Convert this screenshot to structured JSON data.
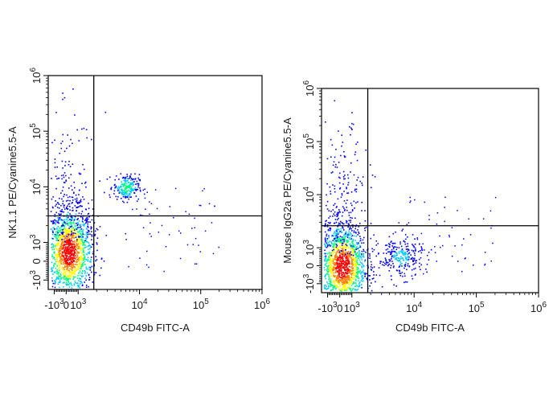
{
  "chart_data": [
    {
      "type": "scatter",
      "plot_style": "pseudocolor density dot plot",
      "title": "",
      "xlabel": "CD49b FITC-A",
      "ylabel": "NK1.1 PE/Cyanine5.5-A",
      "xscale": "biexponential",
      "yscale": "biexponential",
      "xlim": [
        -1500,
        1000000
      ],
      "ylim": [
        -1500,
        1000000
      ],
      "x_ticks": [
        {
          "value": -1000,
          "base": "-10",
          "exp": "3"
        },
        {
          "value": 0,
          "base": "0",
          "exp": ""
        },
        {
          "value": 1000,
          "base": "10",
          "exp": "3"
        },
        {
          "value": 10000,
          "base": "10",
          "exp": "4"
        },
        {
          "value": 100000,
          "base": "10",
          "exp": "5"
        },
        {
          "value": 1000000,
          "base": "10",
          "exp": "6"
        }
      ],
      "y_ticks": [
        {
          "value": -1000,
          "base": "-10",
          "exp": "3"
        },
        {
          "value": 0,
          "base": "0",
          "exp": ""
        },
        {
          "value": 1000,
          "base": "10",
          "exp": "3"
        },
        {
          "value": 10000,
          "base": "10",
          "exp": "4"
        },
        {
          "value": 100000,
          "base": "10",
          "exp": "5"
        },
        {
          "value": 1000000,
          "base": "10",
          "exp": "6"
        }
      ],
      "quadrant_gate": {
        "x": 1800,
        "y": 3000
      },
      "populations": [
        {
          "name": "",
          "center": [
            200,
            500
          ],
          "spread": "large",
          "level": "high"
        },
        {
          "name": "",
          "center": [
            6000,
            10000
          ],
          "spread": "small",
          "level": "medium"
        }
      ]
    },
    {
      "type": "scatter",
      "plot_style": "pseudocolor density dot plot",
      "title": "",
      "xlabel": "CD49b FITC-A",
      "ylabel": "Mouse IgG2a PE/Cyanine5.5-A",
      "xscale": "biexponential",
      "yscale": "biexponential",
      "xlim": [
        -1500,
        1000000
      ],
      "ylim": [
        -1500,
        1000000
      ],
      "x_ticks": [
        {
          "value": -1000,
          "base": "-10",
          "exp": "3"
        },
        {
          "value": 0,
          "base": "0",
          "exp": ""
        },
        {
          "value": 1000,
          "base": "10",
          "exp": "3"
        },
        {
          "value": 10000,
          "base": "10",
          "exp": "4"
        },
        {
          "value": 100000,
          "base": "10",
          "exp": "5"
        },
        {
          "value": 1000000,
          "base": "10",
          "exp": "6"
        }
      ],
      "y_ticks": [
        {
          "value": -1000,
          "base": "-10",
          "exp": "3"
        },
        {
          "value": 0,
          "base": "0",
          "exp": ""
        },
        {
          "value": 1000,
          "base": "10",
          "exp": "3"
        },
        {
          "value": 10000,
          "base": "10",
          "exp": "4"
        },
        {
          "value": 100000,
          "base": "10",
          "exp": "5"
        },
        {
          "value": 1000000,
          "base": "10",
          "exp": "6"
        }
      ],
      "quadrant_gate": {
        "x": 1800,
        "y": 2600
      },
      "populations": [
        {
          "name": "",
          "center": [
            200,
            0
          ],
          "spread": "large",
          "level": "high"
        },
        {
          "name": "",
          "center": [
            6000,
            500
          ],
          "spread": "medium",
          "level": "low"
        }
      ]
    }
  ],
  "colors": {
    "axis": "#000000",
    "density_scale": [
      "#0000ff",
      "#00c8ff",
      "#00ff80",
      "#ffff00",
      "#ff8000",
      "#ff0000"
    ]
  }
}
